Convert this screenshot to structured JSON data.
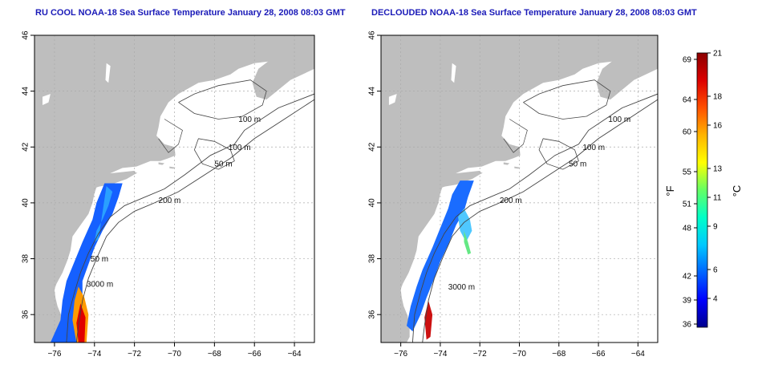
{
  "chart_data": [
    {
      "type": "map",
      "title": "RU COOL NOAA-18 Sea Surface Temperature January 28, 2008 08:03 GMT",
      "xlim": [
        -77,
        -63
      ],
      "ylim": [
        35,
        46
      ],
      "xticks": [
        -76,
        -74,
        -72,
        -70,
        -68,
        -66,
        -64
      ],
      "yticks": [
        36,
        38,
        40,
        42,
        44,
        46
      ],
      "grid": true,
      "contour_labels": [
        {
          "text": "100 m",
          "lon": -66.8,
          "lat": 42.9
        },
        {
          "text": "100 m",
          "lon": -67.3,
          "lat": 41.9
        },
        {
          "text": "50 m",
          "lon": -68.0,
          "lat": 41.3
        },
        {
          "text": "200 m",
          "lon": -70.8,
          "lat": 40.0
        },
        {
          "text": "50 m",
          "lon": -74.2,
          "lat": 37.9
        },
        {
          "text": "3000 m",
          "lon": -74.4,
          "lat": 37.0
        }
      ]
    },
    {
      "type": "map",
      "title": "DECLOUDED NOAA-18 Sea Surface Temperature January 28, 2008 08:03 GMT",
      "xlim": [
        -77,
        -63
      ],
      "ylim": [
        35,
        46
      ],
      "xticks": [
        -76,
        -74,
        -72,
        -70,
        -68,
        -66,
        -64
      ],
      "yticks": [
        36,
        38,
        40,
        42,
        44,
        46
      ],
      "grid": true,
      "contour_labels": [
        {
          "text": "100 m",
          "lon": -65.5,
          "lat": 42.9
        },
        {
          "text": "100 m",
          "lon": -66.8,
          "lat": 41.9
        },
        {
          "text": "50 m",
          "lon": -67.5,
          "lat": 41.3
        },
        {
          "text": "200 m",
          "lon": -71.0,
          "lat": 40.0
        },
        {
          "text": "3000 m",
          "lon": -73.6,
          "lat": 36.9
        }
      ]
    }
  ],
  "colorbar": {
    "label_f": "°F",
    "label_c": "°C",
    "f_ticks": [
      36,
      39,
      42,
      48,
      51,
      55,
      60,
      64,
      69
    ],
    "c_ticks": [
      4,
      6,
      9,
      11,
      13,
      16,
      18,
      21
    ],
    "colors": [
      "#00008c",
      "#0000ff",
      "#0064ff",
      "#00c8ff",
      "#00ffc8",
      "#64ff64",
      "#ffff00",
      "#ffb400",
      "#ff5000",
      "#dc0000",
      "#8b0000"
    ]
  },
  "colors": {
    "land": "#bebebe",
    "ocean": "#ffffff",
    "title": "#1a1ab8",
    "contour": "#444444"
  }
}
